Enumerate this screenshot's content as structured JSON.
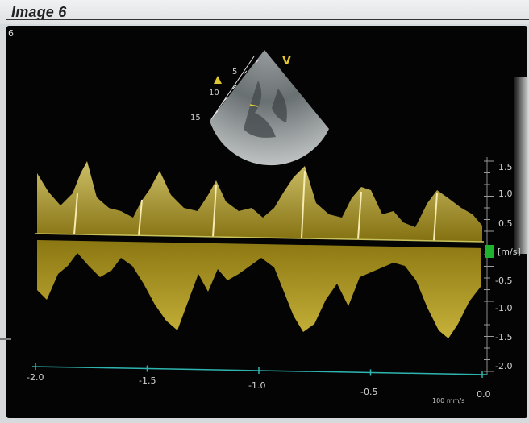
{
  "header": {
    "title": "Image 6",
    "frame_index": "6"
  },
  "sector": {
    "marker": "V",
    "depth_labels": [
      "5",
      "10",
      "15"
    ]
  },
  "velocity_scale": {
    "unit": "[m/s]",
    "ticks": [
      "1.5",
      "1.0",
      "0.5",
      "-0.5",
      "-1.0",
      "-1.5",
      "-2.0"
    ]
  },
  "time_axis": {
    "ticks": [
      "-2.0",
      "-1.5",
      "-1.0",
      "-0.5",
      "0.0"
    ],
    "sweep_speed": "100 mm/s"
  },
  "colors": {
    "doppler": "#e2cc2e",
    "baseline": "#c8c25c",
    "scale_marker": "#1fb22f",
    "time_axis": "#2fb5b0"
  }
}
